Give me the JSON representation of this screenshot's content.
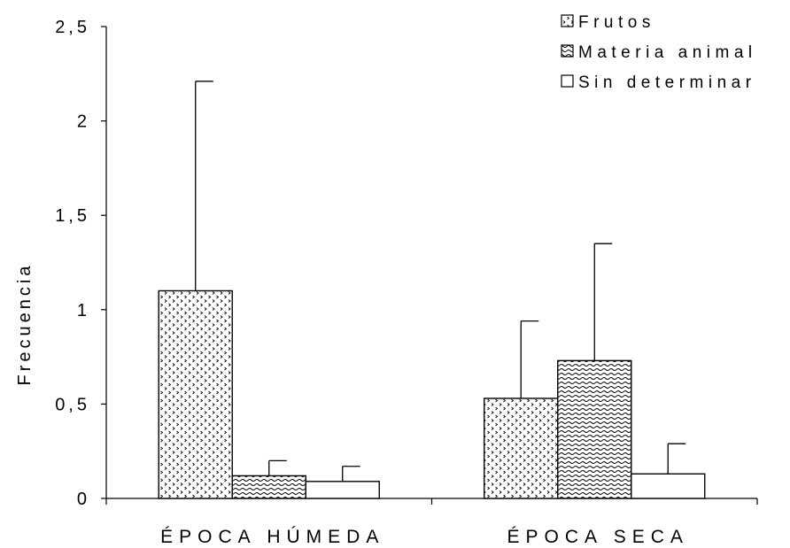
{
  "chart_data": {
    "type": "bar",
    "title": "",
    "xlabel": "",
    "ylabel": "Frecuencia",
    "categories": [
      "ÉPOCA HÚMEDA",
      "ÉPOCA SECA"
    ],
    "ylim": [
      0,
      2.5
    ],
    "yticks": [
      0,
      0.5,
      1,
      1.5,
      2,
      2.5
    ],
    "ytick_labels": [
      "0",
      "0,5",
      "1",
      "1,5",
      "2",
      "2,5"
    ],
    "series": [
      {
        "name": "Frutos",
        "values": [
          1.1,
          0.53
        ],
        "error_upper": [
          2.21,
          0.94
        ],
        "pattern": "dots",
        "color": "#000000"
      },
      {
        "name": "Materia animal",
        "values": [
          0.12,
          0.73
        ],
        "error_upper": [
          0.2,
          1.35
        ],
        "pattern": "waves",
        "color": "#000000"
      },
      {
        "name": "Sin determinar",
        "values": [
          0.09,
          0.13
        ],
        "error_upper": [
          0.17,
          0.29
        ],
        "pattern": "none",
        "color": "#000000"
      }
    ],
    "legend": {
      "position": "top-right"
    },
    "grid": false
  }
}
